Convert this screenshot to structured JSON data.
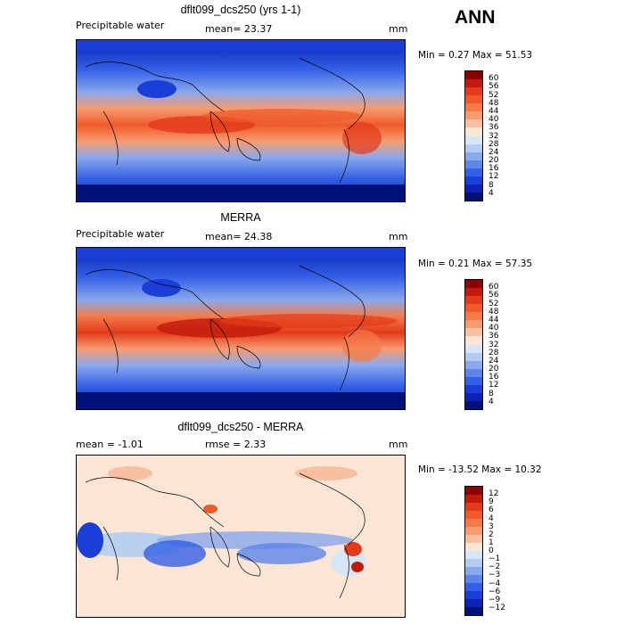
{
  "season": "ANN",
  "panels": [
    {
      "title": "dflt099_dcs250 (yrs 1-1)",
      "left_label": "Precipitable water",
      "mid_label": "mean=  23.37",
      "units": "mm",
      "minmax": "Min =   0.27  Max =   51.53",
      "colorbar_ticks": [
        "60",
        "56",
        "52",
        "48",
        "44",
        "40",
        "36",
        "32",
        "28",
        "24",
        "20",
        "16",
        "12",
        "8",
        "4"
      ],
      "kind": "field"
    },
    {
      "title": "MERRA",
      "left_label": "Precipitable water",
      "mid_label": "mean=  24.38",
      "units": "mm",
      "minmax": "Min =   0.21  Max =   57.35",
      "colorbar_ticks": [
        "60",
        "56",
        "52",
        "48",
        "44",
        "40",
        "36",
        "32",
        "28",
        "24",
        "20",
        "16",
        "12",
        "8",
        "4"
      ],
      "kind": "field"
    },
    {
      "title": "dflt099_dcs250 - MERRA",
      "left_label": "mean =  -1.01",
      "mid_label": "rmse =   2.33",
      "units": "mm",
      "minmax": "Min = -13.52  Max =   10.32",
      "colorbar_ticks": [
        "12",
        "9",
        "6",
        "4",
        "3",
        "2",
        "1",
        "0",
        "−1",
        "−2",
        "−3",
        "−4",
        "−6",
        "−9",
        "−12"
      ],
      "kind": "diff"
    }
  ],
  "colors": {
    "field": [
      "#8b0000",
      "#c21a0a",
      "#e23a1a",
      "#f05a2a",
      "#f47a48",
      "#f79b70",
      "#f8bfa0",
      "#fbe6d6",
      "#d7e6f7",
      "#b3cdf2",
      "#8aa8ec",
      "#5d85ea",
      "#3360e6",
      "#1a3fd8",
      "#0a23b5",
      "#00127a"
    ],
    "diff": [
      "#8b0000",
      "#c21a0a",
      "#e23a1a",
      "#f05a2a",
      "#f47a48",
      "#f79b70",
      "#f8bfa0",
      "#fbe6d6",
      "#d7e6f7",
      "#b3cdf2",
      "#8aa8ec",
      "#5d85ea",
      "#3360e6",
      "#1a3fd8",
      "#0a23b5",
      "#00127a"
    ]
  }
}
